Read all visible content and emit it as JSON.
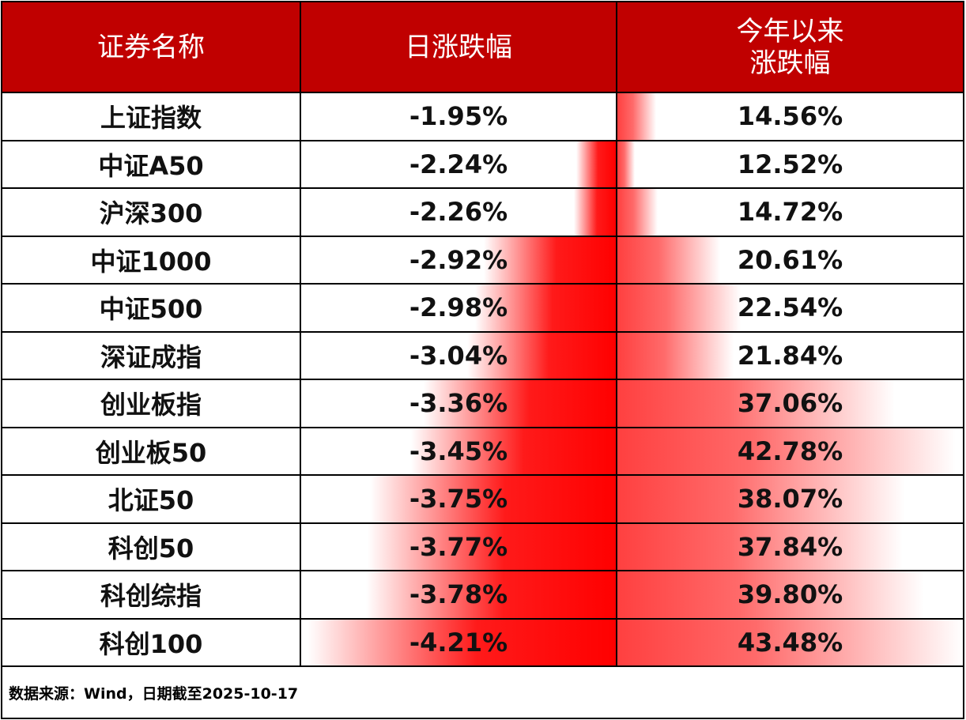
{
  "chart_data": {
    "type": "table",
    "columns": [
      "证券名称",
      "日涨跌幅",
      "今年以来涨跌幅"
    ],
    "header_lines": {
      "name": "证券名称",
      "daily": "日涨跌幅",
      "ytd_line1": "今年以来",
      "ytd_line2": "涨跌幅"
    },
    "rows": [
      {
        "name": "上证指数",
        "daily": -1.95,
        "ytd": 14.56
      },
      {
        "name": "中证A50",
        "daily": -2.24,
        "ytd": 12.52
      },
      {
        "name": "沪深300",
        "daily": -2.26,
        "ytd": 14.72
      },
      {
        "name": "中证1000",
        "daily": -2.92,
        "ytd": 20.61
      },
      {
        "name": "中证500",
        "daily": -2.98,
        "ytd": 22.54
      },
      {
        "name": "深证成指",
        "daily": -3.04,
        "ytd": 21.84
      },
      {
        "name": "创业板指",
        "daily": -3.36,
        "ytd": 37.06
      },
      {
        "name": "创业板50",
        "daily": -3.45,
        "ytd": 42.78
      },
      {
        "name": "北证50",
        "daily": -3.75,
        "ytd": 38.07
      },
      {
        "name": "科创50",
        "daily": -3.77,
        "ytd": 37.84
      },
      {
        "name": "科创综指",
        "daily": -3.78,
        "ytd": 39.8
      },
      {
        "name": "科创100",
        "daily": -4.21,
        "ytd": 43.48
      }
    ],
    "source": "数据来源：Wind，日期截至2025-10-17"
  },
  "colors": {
    "header_bg": "#c00000",
    "bar": "#ff0000"
  }
}
